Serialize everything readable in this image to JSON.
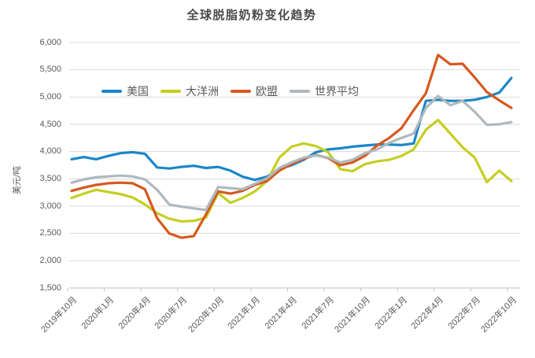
{
  "title": "全球脱脂奶粉变化趋势",
  "y_axis_title": "美元/吨",
  "chart_data": {
    "type": "line",
    "title": "全球脱脂奶粉变化趋势",
    "xlabel": "",
    "ylabel": "美元/吨",
    "ylim": [
      1500,
      6000
    ],
    "ytick_step": 500,
    "ytick_labels": [
      "1,500",
      "2,000",
      "2,500",
      "3,000",
      "3,500",
      "4,000",
      "4,500",
      "5,000",
      "5,500",
      "6,000"
    ],
    "grid": true,
    "legend_position": "inside-top-left",
    "x_tick_every": 3,
    "x_tick_labels_shown": [
      "2019年10月",
      "2020年1月",
      "2020年4月",
      "2020年7月",
      "2020年10月",
      "2021年1月",
      "2021年4月",
      "2021年7月",
      "2021年10月",
      "2022年1月",
      "2022年4月",
      "2022年7月",
      "2022年10月"
    ],
    "categories": [
      "2019年10月",
      "2019年11月",
      "2019年12月",
      "2020年1月",
      "2020年2月",
      "2020年3月",
      "2020年4月",
      "2020年5月",
      "2020年6月",
      "2020年7月",
      "2020年8月",
      "2020年9月",
      "2020年10月",
      "2020年11月",
      "2020年12月",
      "2021年1月",
      "2021年2月",
      "2021年3月",
      "2021年4月",
      "2021年5月",
      "2021年6月",
      "2021年7月",
      "2021年8月",
      "2021年9月",
      "2021年10月",
      "2021年11月",
      "2021年12月",
      "2022年1月",
      "2022年2月",
      "2022年3月",
      "2022年4月",
      "2022年5月",
      "2022年6月",
      "2022年7月",
      "2022年8月",
      "2022年9月",
      "2022年10月"
    ],
    "series": [
      {
        "name": "美国",
        "color": "#1b86c8",
        "values": [
          3860,
          3900,
          3860,
          3920,
          3970,
          3990,
          3960,
          3710,
          3690,
          3720,
          3740,
          3700,
          3720,
          3650,
          3540,
          3480,
          3540,
          3680,
          3750,
          3850,
          3990,
          4040,
          4060,
          4090,
          4110,
          4130,
          4130,
          4120,
          4150,
          4930,
          4950,
          4930,
          4930,
          4950,
          5000,
          5080,
          5350
        ]
      },
      {
        "name": "大洋洲",
        "color": "#c3cf20",
        "values": [
          3150,
          3230,
          3300,
          3260,
          3220,
          3160,
          3030,
          2870,
          2770,
          2720,
          2730,
          2790,
          3240,
          3060,
          3150,
          3270,
          3460,
          3890,
          4090,
          4150,
          4100,
          3990,
          3680,
          3640,
          3770,
          3820,
          3850,
          3920,
          4040,
          4400,
          4580,
          4330,
          4080,
          3890,
          3440,
          3650,
          3460
        ]
      },
      {
        "name": "欧盟",
        "color": "#d6591d",
        "values": [
          3280,
          3340,
          3390,
          3420,
          3430,
          3420,
          3310,
          2780,
          2500,
          2420,
          2450,
          2850,
          3270,
          3230,
          3280,
          3390,
          3460,
          3650,
          3770,
          3870,
          3940,
          3880,
          3750,
          3800,
          3920,
          4110,
          4250,
          4430,
          4760,
          5070,
          5770,
          5600,
          5610,
          5360,
          5090,
          4940,
          4800
        ]
      },
      {
        "name": "世界平均",
        "color": "#aeb9be",
        "values": [
          3430,
          3490,
          3530,
          3545,
          3560,
          3545,
          3490,
          3300,
          3030,
          2990,
          2960,
          2930,
          3350,
          3330,
          3310,
          3410,
          3510,
          3700,
          3800,
          3890,
          3930,
          3890,
          3800,
          3850,
          3970,
          4040,
          4160,
          4250,
          4330,
          4800,
          5020,
          4850,
          4930,
          4730,
          4490,
          4500,
          4540
        ]
      }
    ],
    "colors": {
      "grid": "#d9d9d9",
      "axis": "#bfbfbf",
      "text": "#595959",
      "title": "#4a4a4a"
    }
  }
}
